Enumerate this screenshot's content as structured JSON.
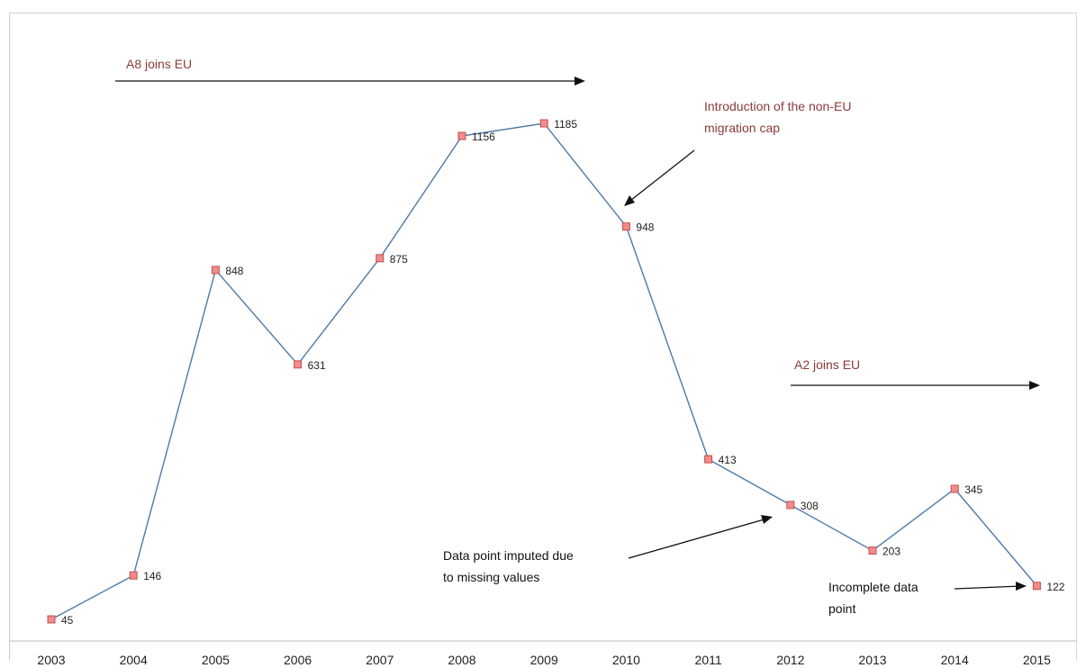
{
  "chart_data": {
    "type": "line",
    "x": [
      "2003",
      "2004",
      "2005",
      "2006",
      "2007",
      "2008",
      "2009",
      "2010",
      "2011",
      "2012",
      "2013",
      "2014",
      "2015"
    ],
    "series": [
      {
        "values": [
          45,
          146,
          848,
          631,
          875,
          1156,
          1185,
          948,
          413,
          308,
          203,
          345,
          122
        ]
      }
    ],
    "title": "",
    "xlabel": "",
    "ylabel": "",
    "ylim": [
      0,
      1300
    ],
    "grid": false,
    "legend": "none",
    "colors": {
      "line": "#4e79a7",
      "marker_fill": "#f28b8b",
      "marker_stroke": "#c0504d",
      "annotation_red": "#8b3a3a"
    },
    "annotations": [
      {
        "id": "a8",
        "lines": [
          "A8 joins EU"
        ],
        "style": "red"
      },
      {
        "id": "cap",
        "lines": [
          "Introduction of the non-EU",
          "migration cap"
        ],
        "style": "red"
      },
      {
        "id": "a2",
        "lines": [
          "A2 joins EU"
        ],
        "style": "red"
      },
      {
        "id": "imputed",
        "lines": [
          "Data point imputed due",
          "to missing values"
        ],
        "style": "black"
      },
      {
        "id": "incomplete",
        "lines": [
          "Incomplete data",
          "point"
        ],
        "style": "black"
      }
    ]
  }
}
